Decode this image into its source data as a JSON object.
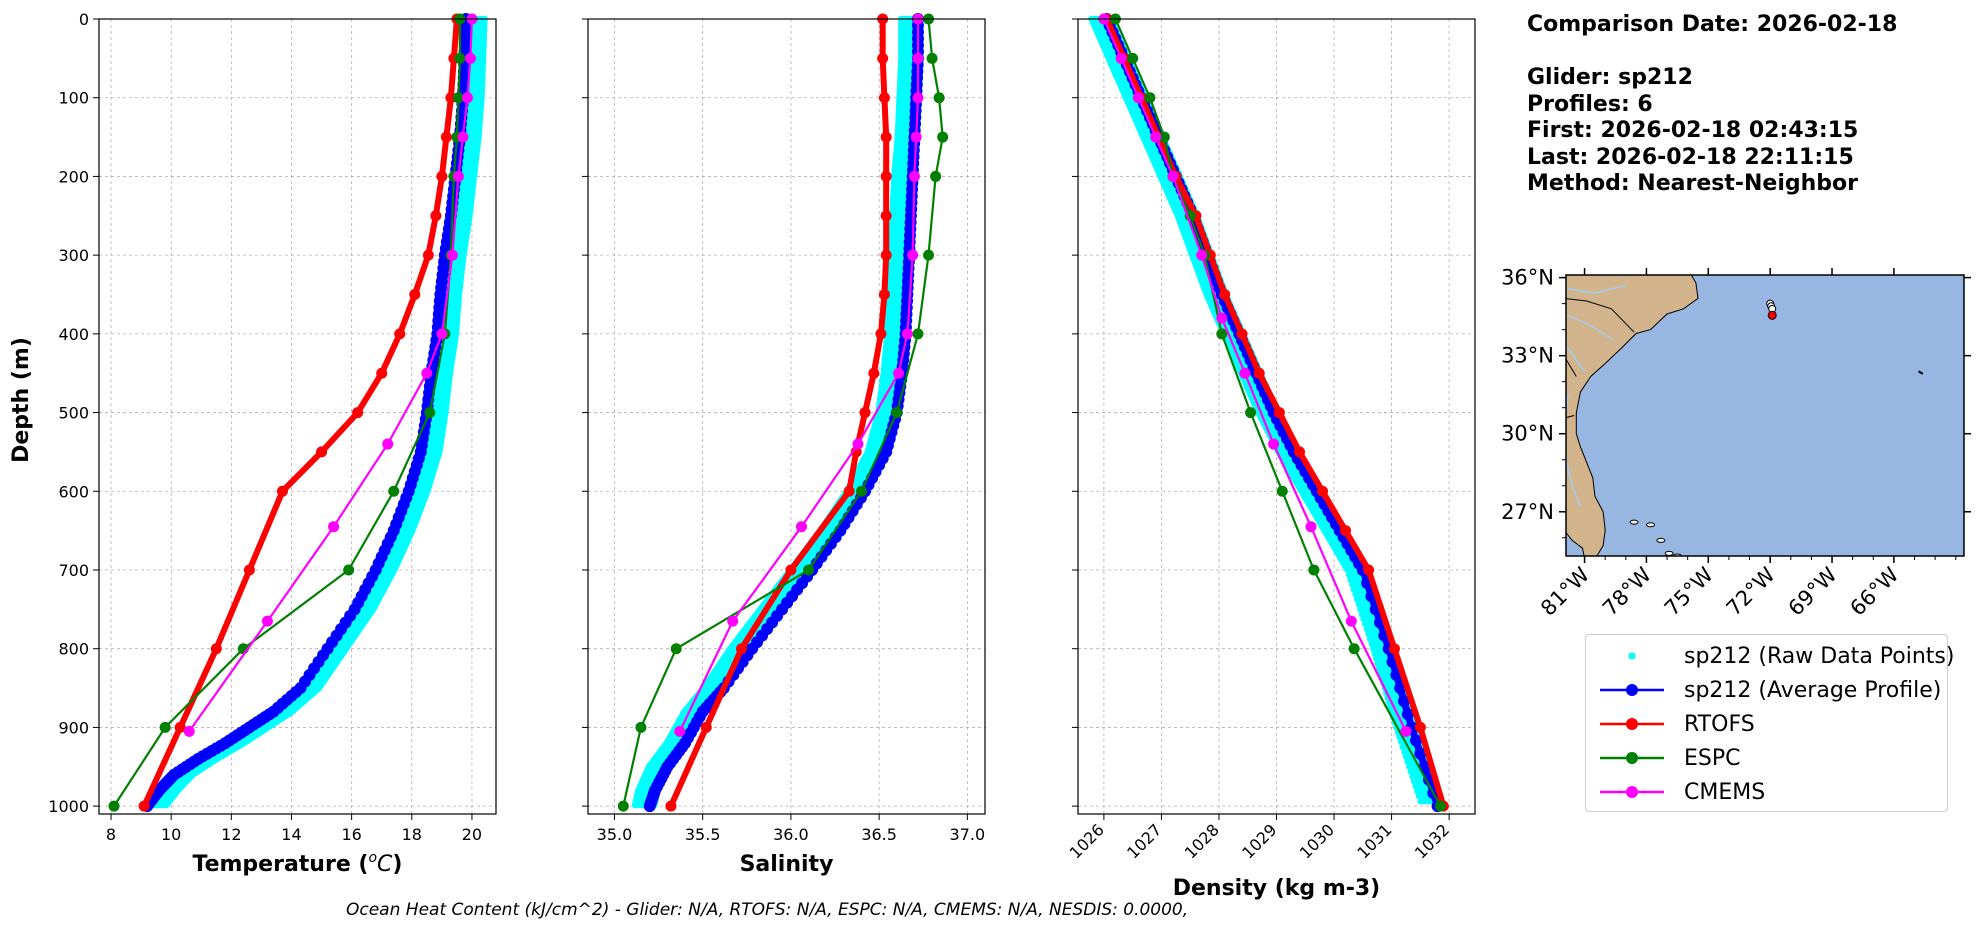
{
  "info": {
    "comparison_date": "Comparison Date: 2026-02-18",
    "glider": "Glider: sp212",
    "profiles": "Profiles: 6",
    "first": "First: 2026-02-18 02:43:15",
    "last": "Last: 2026-02-18 22:11:15",
    "method": "Method: Nearest-Neighbor"
  },
  "footer": "Ocean Heat Content (kJ/cm^2) - Glider: N/A,  RTOFS: N/A,  ESPC: N/A,  CMEMS: N/A,  NESDIS: 0.0000,",
  "legend": [
    {
      "key": "raw",
      "label": "sp212 (Raw Data Points)",
      "color": "#00ffff"
    },
    {
      "key": "avg",
      "label": "sp212 (Average Profile)",
      "color": "#0000ff"
    },
    {
      "key": "rtofs",
      "label": "RTOFS",
      "color": "#ff0000"
    },
    {
      "key": "espc",
      "label": "ESPC",
      "color": "#008000"
    },
    {
      "key": "cmems",
      "label": "CMEMS",
      "color": "#ff00ff"
    }
  ],
  "map": {
    "lat_labels": [
      "36°N",
      "33°N",
      "30°N",
      "27°N"
    ],
    "lon_labels": [
      "81°W",
      "78°W",
      "75°W",
      "72°W",
      "69°W",
      "66°W"
    ],
    "land_color": "#d2b48c",
    "ocean_color": "#97b6e1"
  },
  "chart_data": [
    {
      "type": "line",
      "xlabel": "Temperature (°C)",
      "xlabel_parts": [
        "Temperature (",
        "o",
        "C)"
      ],
      "ylabel": "Depth (m)",
      "xlim": [
        7.6,
        20.8
      ],
      "ylim": [
        1010,
        0
      ],
      "xticks": [
        8,
        10,
        12,
        14,
        16,
        18,
        20
      ],
      "yticks": [
        0,
        100,
        200,
        300,
        400,
        500,
        600,
        700,
        800,
        900,
        1000
      ],
      "grid": true,
      "series": [
        {
          "name": "sp212 (Average Profile)",
          "key": "avg",
          "x": [
            19.8,
            19.75,
            19.7,
            19.6,
            19.45,
            19.3,
            19.1,
            18.95,
            18.85,
            18.65,
            18.5,
            18.3,
            17.9,
            17.4,
            16.8,
            16.1,
            15.2,
            14.3,
            13.4,
            12.6,
            11.8,
            10.9,
            10.1,
            9.6,
            9.2
          ],
          "y": [
            0,
            50,
            100,
            150,
            200,
            250,
            300,
            350,
            400,
            450,
            500,
            550,
            600,
            650,
            700,
            750,
            800,
            850,
            880,
            900,
            920,
            940,
            960,
            980,
            1000
          ]
        },
        {
          "name": "sp212 (Raw Data Points)",
          "key": "raw",
          "x": [
            20.1,
            20.05,
            20.0,
            19.9,
            19.75,
            19.6,
            19.4,
            19.25,
            19.15,
            18.95,
            18.8,
            18.6,
            18.2,
            17.7,
            17.1,
            16.4,
            15.5,
            14.6,
            13.7,
            12.9,
            12.1,
            11.2,
            10.4,
            9.9,
            9.5
          ],
          "y": [
            0,
            50,
            100,
            150,
            200,
            250,
            300,
            350,
            400,
            450,
            500,
            550,
            600,
            650,
            700,
            750,
            800,
            850,
            880,
            900,
            920,
            940,
            960,
            980,
            1000
          ]
        },
        {
          "name": "RTOFS",
          "key": "rtofs",
          "x": [
            19.5,
            19.4,
            19.3,
            19.15,
            19.0,
            18.8,
            18.55,
            18.1,
            17.6,
            17.0,
            16.2,
            15.0,
            13.7,
            12.6,
            11.5,
            10.3,
            9.1
          ],
          "y": [
            0,
            50,
            100,
            150,
            200,
            250,
            300,
            350,
            400,
            450,
            500,
            550,
            600,
            700,
            800,
            900,
            1000
          ]
        },
        {
          "name": "ESPC",
          "key": "espc",
          "x": [
            19.6,
            19.6,
            19.55,
            19.5,
            19.4,
            19.3,
            19.1,
            18.6,
            17.4,
            15.9,
            12.4,
            9.8,
            8.1
          ],
          "y": [
            0,
            50,
            100,
            150,
            200,
            300,
            400,
            500,
            600,
            700,
            800,
            900,
            1000
          ]
        },
        {
          "name": "CMEMS",
          "key": "cmems",
          "x": [
            20.0,
            19.95,
            19.85,
            19.7,
            19.55,
            19.35,
            19.0,
            18.5,
            17.2,
            15.4,
            13.2,
            10.6
          ],
          "y": [
            0,
            50,
            100,
            150,
            200,
            300,
            400,
            450,
            540,
            645,
            765,
            905
          ]
        }
      ]
    },
    {
      "type": "line",
      "xlabel": "Salinity",
      "xlim": [
        34.85,
        37.1
      ],
      "ylim": [
        1010,
        0
      ],
      "xticks": [
        35.0,
        35.5,
        36.0,
        36.5,
        37.0
      ],
      "yticks": [
        0,
        100,
        200,
        300,
        400,
        500,
        600,
        700,
        800,
        900,
        1000
      ],
      "grid": true,
      "series": [
        {
          "name": "sp212 (Average Profile)",
          "key": "avg",
          "x": [
            36.72,
            36.72,
            36.71,
            36.7,
            36.69,
            36.68,
            36.67,
            36.66,
            36.65,
            36.63,
            36.6,
            36.54,
            36.42,
            36.28,
            36.12,
            35.95,
            35.78,
            35.62,
            35.5,
            35.4,
            35.3,
            35.23,
            35.2
          ],
          "y": [
            0,
            50,
            100,
            150,
            200,
            250,
            300,
            350,
            400,
            450,
            500,
            550,
            600,
            650,
            700,
            750,
            800,
            850,
            880,
            920,
            950,
            980,
            1000
          ]
        },
        {
          "name": "sp212 (Raw Data Points)",
          "key": "raw",
          "x": [
            36.68,
            36.68,
            36.67,
            36.66,
            36.64,
            36.63,
            36.62,
            36.61,
            36.6,
            36.58,
            36.55,
            36.49,
            36.37,
            36.22,
            36.05,
            35.88,
            35.71,
            35.56,
            35.45,
            35.35,
            35.25,
            35.19,
            35.17
          ],
          "y": [
            0,
            50,
            100,
            150,
            200,
            250,
            300,
            350,
            400,
            450,
            500,
            550,
            600,
            650,
            700,
            750,
            800,
            850,
            880,
            920,
            950,
            980,
            1000
          ]
        },
        {
          "name": "RTOFS",
          "key": "rtofs",
          "x": [
            36.52,
            36.52,
            36.53,
            36.54,
            36.54,
            36.54,
            36.54,
            36.53,
            36.51,
            36.47,
            36.42,
            36.37,
            36.33,
            36.0,
            35.72,
            35.52,
            35.32
          ],
          "y": [
            0,
            50,
            100,
            150,
            200,
            250,
            300,
            350,
            400,
            450,
            500,
            550,
            600,
            700,
            800,
            900,
            1000
          ]
        },
        {
          "name": "ESPC",
          "key": "espc",
          "x": [
            36.78,
            36.8,
            36.84,
            36.86,
            36.82,
            36.78,
            36.72,
            36.6,
            36.4,
            36.1,
            35.35,
            35.15,
            35.05
          ],
          "y": [
            0,
            50,
            100,
            150,
            200,
            300,
            400,
            500,
            600,
            700,
            800,
            900,
            1000
          ]
        },
        {
          "name": "CMEMS",
          "key": "cmems",
          "x": [
            36.72,
            36.72,
            36.72,
            36.71,
            36.7,
            36.69,
            36.66,
            36.61,
            36.38,
            36.06,
            35.67,
            35.37
          ],
          "y": [
            0,
            50,
            100,
            150,
            200,
            300,
            400,
            450,
            540,
            645,
            765,
            905
          ]
        }
      ]
    },
    {
      "type": "line",
      "xlabel": "Density (kg m-3)",
      "xlim": [
        1025.55,
        1032.45
      ],
      "ylim": [
        1010,
        0
      ],
      "xticks": [
        1026,
        1027,
        1028,
        1029,
        1030,
        1031,
        1032
      ],
      "yticks": [
        0,
        100,
        200,
        300,
        400,
        500,
        600,
        700,
        800,
        900,
        1000
      ],
      "grid": true,
      "series": [
        {
          "name": "sp212 (Average Profile)",
          "key": "avg",
          "x": [
            1026.05,
            1026.35,
            1026.65,
            1026.95,
            1027.25,
            1027.55,
            1027.8,
            1028.05,
            1028.35,
            1028.65,
            1028.95,
            1029.3,
            1029.7,
            1030.1,
            1030.5,
            1030.95,
            1031.35,
            1031.8
          ],
          "y": [
            0,
            50,
            100,
            150,
            200,
            250,
            300,
            350,
            400,
            450,
            500,
            550,
            600,
            650,
            700,
            800,
            900,
            1000
          ]
        },
        {
          "name": "sp212 (Raw Data Points)",
          "key": "raw",
          "x": [
            1025.95,
            1026.25,
            1026.55,
            1026.85,
            1027.15,
            1027.45,
            1027.7,
            1027.95,
            1028.25,
            1028.55,
            1028.85,
            1029.2,
            1029.6,
            1030.0,
            1030.4,
            1030.85,
            1031.25,
            1031.7
          ],
          "y": [
            0,
            50,
            100,
            150,
            200,
            250,
            300,
            350,
            400,
            450,
            500,
            550,
            600,
            650,
            700,
            800,
            900,
            1000
          ]
        },
        {
          "name": "RTOFS",
          "key": "rtofs",
          "x": [
            1026.05,
            1026.35,
            1026.65,
            1026.95,
            1027.25,
            1027.6,
            1027.85,
            1028.1,
            1028.4,
            1028.7,
            1029.05,
            1029.4,
            1029.8,
            1030.2,
            1030.6,
            1031.05,
            1031.5,
            1031.9
          ],
          "y": [
            0,
            50,
            100,
            150,
            200,
            250,
            300,
            350,
            400,
            450,
            500,
            550,
            600,
            650,
            700,
            800,
            900,
            1000
          ]
        },
        {
          "name": "ESPC",
          "key": "espc",
          "x": [
            1026.2,
            1026.5,
            1026.8,
            1027.05,
            1027.2,
            1027.5,
            1027.75,
            1028.05,
            1028.55,
            1029.1,
            1029.65,
            1030.35,
            1031.85
          ],
          "y": [
            0,
            50,
            100,
            150,
            200,
            250,
            300,
            400,
            500,
            600,
            700,
            800,
            1000
          ]
        },
        {
          "name": "CMEMS",
          "key": "cmems",
          "x": [
            1026.0,
            1026.3,
            1026.6,
            1026.9,
            1027.2,
            1027.7,
            1028.05,
            1028.45,
            1028.95,
            1029.6,
            1030.3,
            1031.25
          ],
          "y": [
            0,
            50,
            100,
            150,
            200,
            300,
            380,
            450,
            540,
            645,
            765,
            905
          ]
        }
      ]
    }
  ]
}
